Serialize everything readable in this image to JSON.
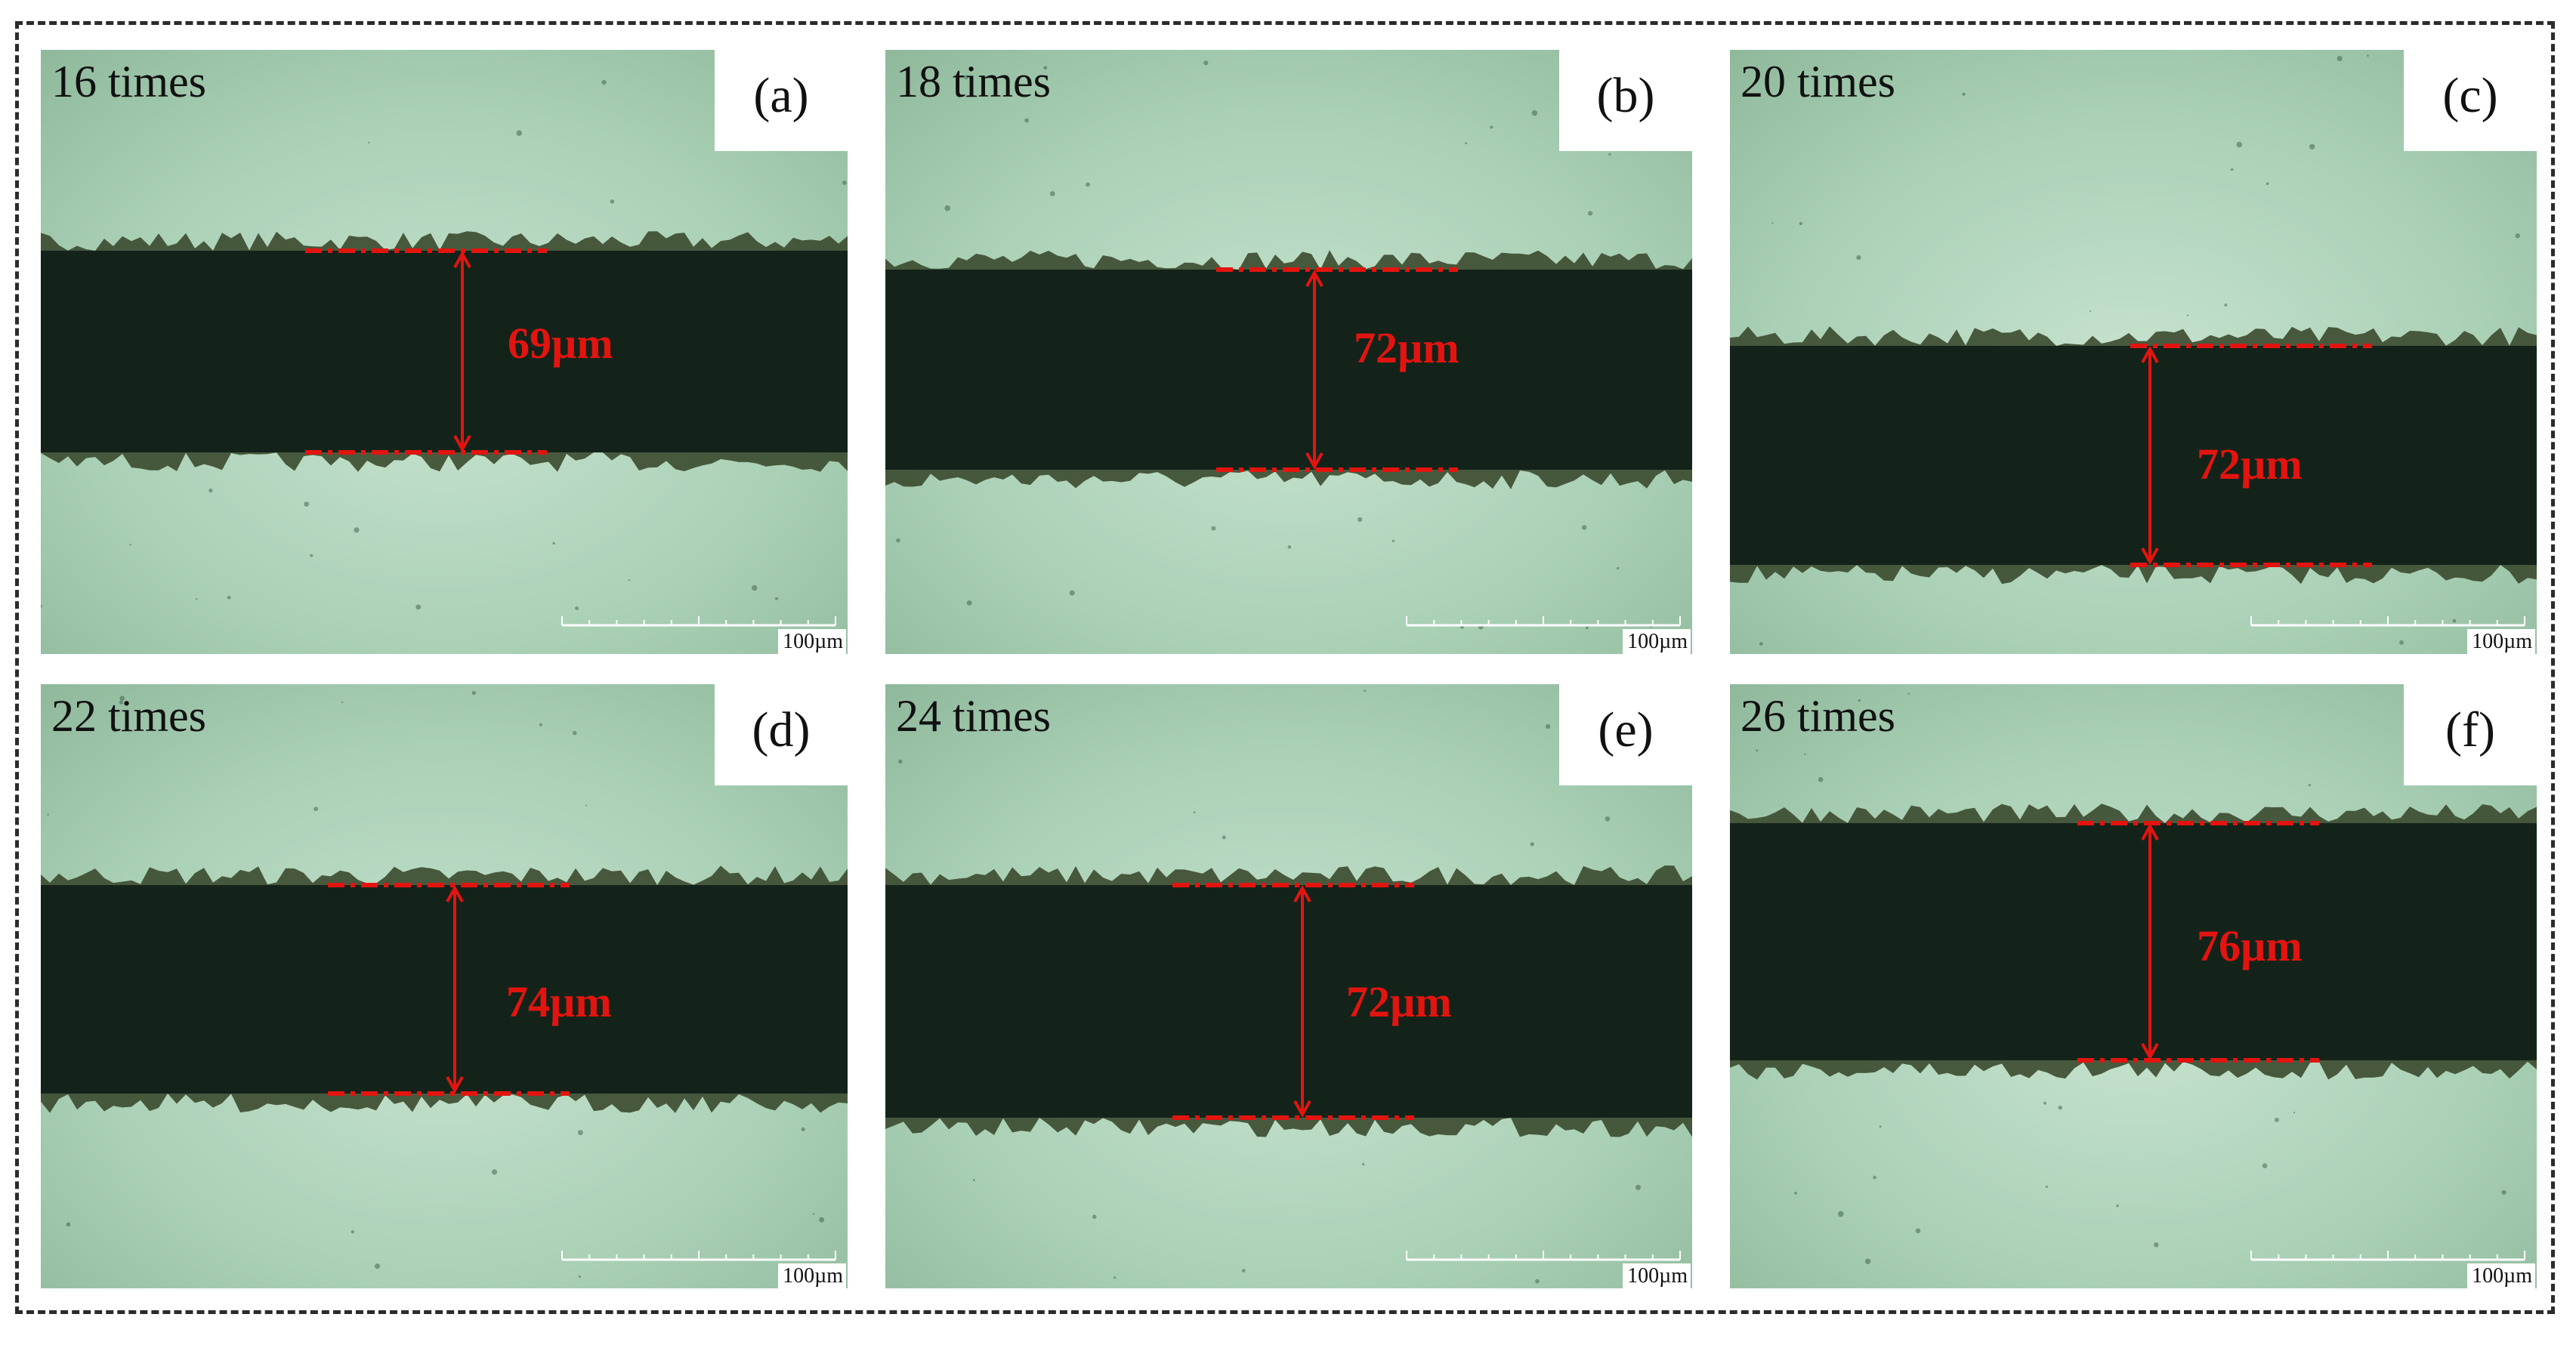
{
  "panels": [
    {
      "caption": "16 times",
      "letter": "(a)",
      "measurement": "69µm",
      "scale": "100µm"
    },
    {
      "caption": "18 times",
      "letter": "(b)",
      "measurement": "72µm",
      "scale": "100µm"
    },
    {
      "caption": "20 times",
      "letter": "(c)",
      "measurement": "72µm",
      "scale": "100µm"
    },
    {
      "caption": "22 times",
      "letter": "(d)",
      "measurement": "74µm",
      "scale": "100µm"
    },
    {
      "caption": "24 times",
      "letter": "(e)",
      "measurement": "72µm",
      "scale": "100µm"
    },
    {
      "caption": "26 times",
      "letter": "(f)",
      "measurement": "76µm",
      "scale": "100µm"
    }
  ],
  "colors": {
    "background_light": "#a9d0b5",
    "background_edge": "#8fb89b",
    "groove_dark": "#13231a",
    "measurement_red": "#e3140f"
  }
}
